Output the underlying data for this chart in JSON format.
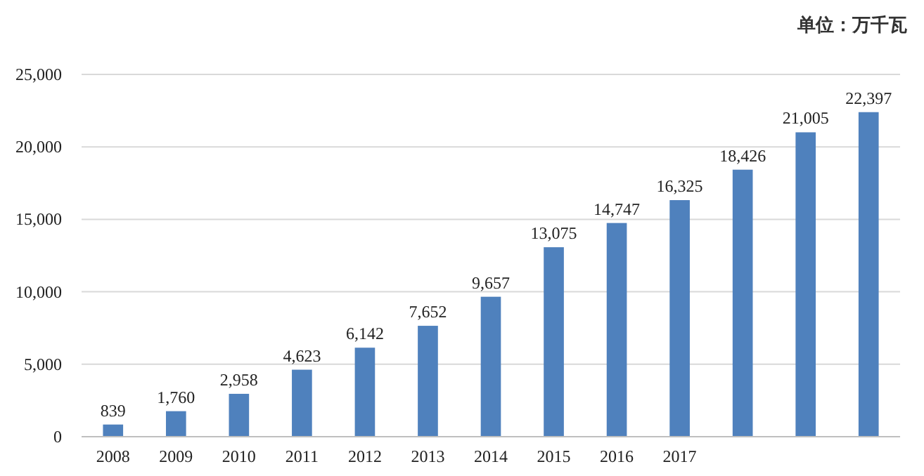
{
  "chart_data": {
    "type": "bar",
    "categories": [
      "2008",
      "2009",
      "2010",
      "2011",
      "2012",
      "2013",
      "2014",
      "2015",
      "2016",
      "2017",
      null,
      null,
      null
    ],
    "values": [
      839,
      1760,
      2958,
      4623,
      6142,
      7652,
      9657,
      13075,
      14747,
      16325,
      18426,
      21005,
      22397
    ],
    "value_labels": [
      "839",
      "1,760",
      "2,958",
      "4,623",
      "6,142",
      "7,652",
      "9,657",
      "13,075",
      "14,747",
      "16,325",
      "18,426",
      "21,005",
      "22,397"
    ],
    "color": "#4f81bd",
    "ylim": [
      0,
      25000
    ],
    "yticks": [
      {
        "value": 0,
        "label": "0"
      },
      {
        "value": 5000,
        "label": "5,000"
      },
      {
        "value": 10000,
        "label": "10,000"
      },
      {
        "value": 15000,
        "label": "15,000"
      },
      {
        "value": 20000,
        "label": "20,000"
      },
      {
        "value": 25000,
        "label": "25,000"
      }
    ],
    "grid": "y",
    "annotations": [
      "单位：万千瓦"
    ]
  }
}
